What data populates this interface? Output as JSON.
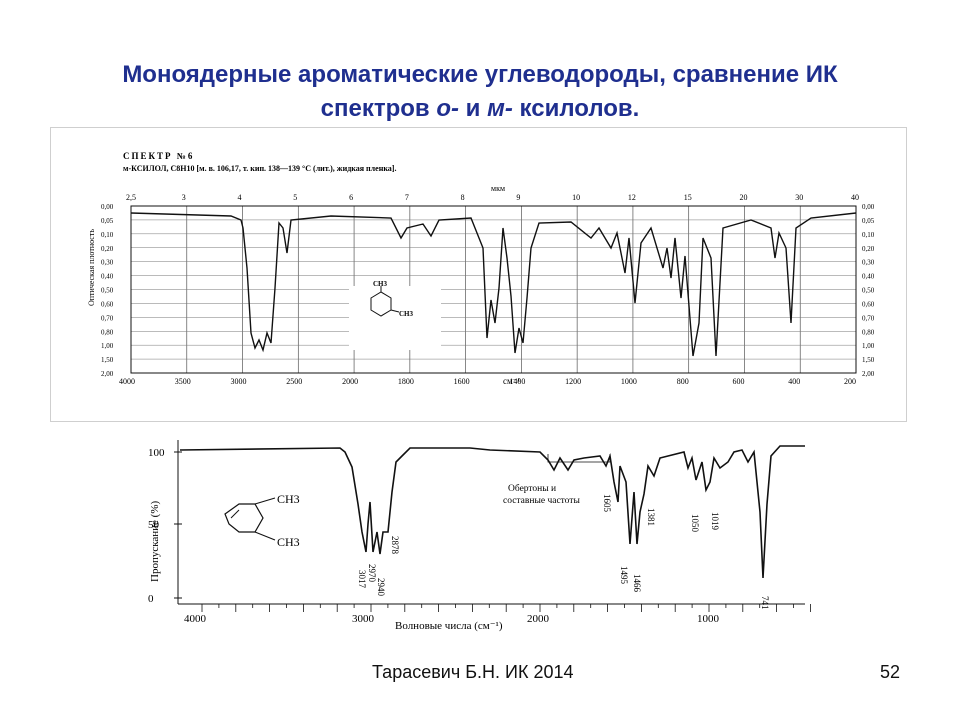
{
  "slide": {
    "title_line1": "Моноядерные ароматические углеводороды, сравнение ИК",
    "title_line2_pre": "спектров ",
    "title_o": "о-",
    "title_mid": " и ",
    "title_m": "м-",
    "title_post": " ксилолов.",
    "footer": "Тарасевич Б.Н.  ИК 2014",
    "page_number": "52"
  },
  "spectrum_top": {
    "header_line1": "СПЕКТР №6",
    "header_line2": "м-КСИЛОЛ, C8H10 [м. в. 106,17, т. кип. 138—139 °С (лит.), жидкая пленка].",
    "unit_top": "мкм",
    "unit_bottom": "см⁻¹",
    "ylabel": "Оптическая плотность",
    "micron_ticks": [
      "2,5",
      "3",
      "4",
      "5",
      "6",
      "7",
      "8",
      "9",
      "10",
      "12",
      "15",
      "20",
      "30",
      "40"
    ],
    "wavenumber_ticks": [
      "4000",
      "3500",
      "3000",
      "2500",
      "2000",
      "1800",
      "1600",
      "1400",
      "1200",
      "1000",
      "800",
      "600",
      "400",
      "200"
    ],
    "y_ticks": [
      "0,00",
      "0,05",
      "0,10",
      "0,20",
      "0,30",
      "0,40",
      "0,50",
      "0,60",
      "0,70",
      "0,80",
      "1,00",
      "1,50",
      "2,00"
    ],
    "mol_ch3_a": "CH3",
    "mol_ch3_b": "CH3"
  },
  "spectrum_bottom": {
    "ylabel": "Пропускание (%)",
    "xlabel": "Волновые числа (см⁻¹)",
    "x_ticks": [
      "4000",
      "3000",
      "2000",
      "1000"
    ],
    "y_ticks": [
      "100",
      "50",
      "0"
    ],
    "mol_ch3_a": "CH3",
    "mol_ch3_b": "CH3",
    "annotation": "Обертоны и составные частоты",
    "peak_labels": [
      "3017",
      "2970",
      "2940",
      "2878",
      "1605",
      "1495",
      "1466",
      "1381",
      "1050",
      "1019",
      "741"
    ]
  }
}
